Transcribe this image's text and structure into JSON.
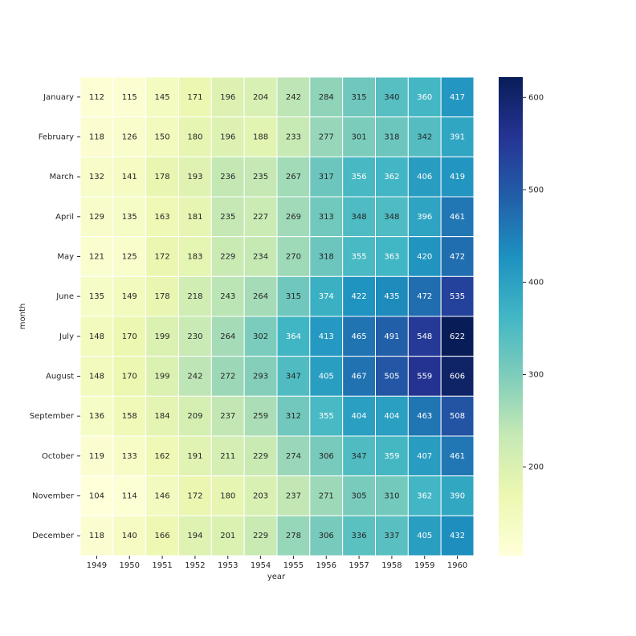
{
  "chart_data": {
    "type": "heatmap",
    "xlabel": "year",
    "ylabel": "month",
    "x": [
      "1949",
      "1950",
      "1951",
      "1952",
      "1953",
      "1954",
      "1955",
      "1956",
      "1957",
      "1958",
      "1959",
      "1960"
    ],
    "y": [
      "January",
      "February",
      "March",
      "April",
      "May",
      "June",
      "July",
      "August",
      "September",
      "October",
      "November",
      "December"
    ],
    "values": [
      [
        112,
        115,
        145,
        171,
        196,
        204,
        242,
        284,
        315,
        340,
        360,
        417
      ],
      [
        118,
        126,
        150,
        180,
        196,
        188,
        233,
        277,
        301,
        318,
        342,
        391
      ],
      [
        132,
        141,
        178,
        193,
        236,
        235,
        267,
        317,
        356,
        362,
        406,
        419
      ],
      [
        129,
        135,
        163,
        181,
        235,
        227,
        269,
        313,
        348,
        348,
        396,
        461
      ],
      [
        121,
        125,
        172,
        183,
        229,
        234,
        270,
        318,
        355,
        363,
        420,
        472
      ],
      [
        135,
        149,
        178,
        218,
        243,
        264,
        315,
        374,
        422,
        435,
        472,
        535
      ],
      [
        148,
        170,
        199,
        230,
        264,
        302,
        364,
        413,
        465,
        491,
        548,
        622
      ],
      [
        148,
        170,
        199,
        242,
        272,
        293,
        347,
        405,
        467,
        505,
        559,
        606
      ],
      [
        136,
        158,
        184,
        209,
        237,
        259,
        312,
        355,
        404,
        404,
        463,
        508
      ],
      [
        119,
        133,
        162,
        191,
        211,
        229,
        274,
        306,
        347,
        359,
        407,
        461
      ],
      [
        104,
        114,
        146,
        172,
        180,
        203,
        237,
        271,
        305,
        310,
        362,
        390
      ],
      [
        118,
        140,
        166,
        194,
        201,
        229,
        278,
        306,
        336,
        337,
        405,
        432
      ]
    ],
    "colormap": "YlGnBu",
    "zlim": [
      104,
      622
    ],
    "zticks": [
      200,
      300,
      400,
      500,
      600
    ],
    "annotate": true
  }
}
